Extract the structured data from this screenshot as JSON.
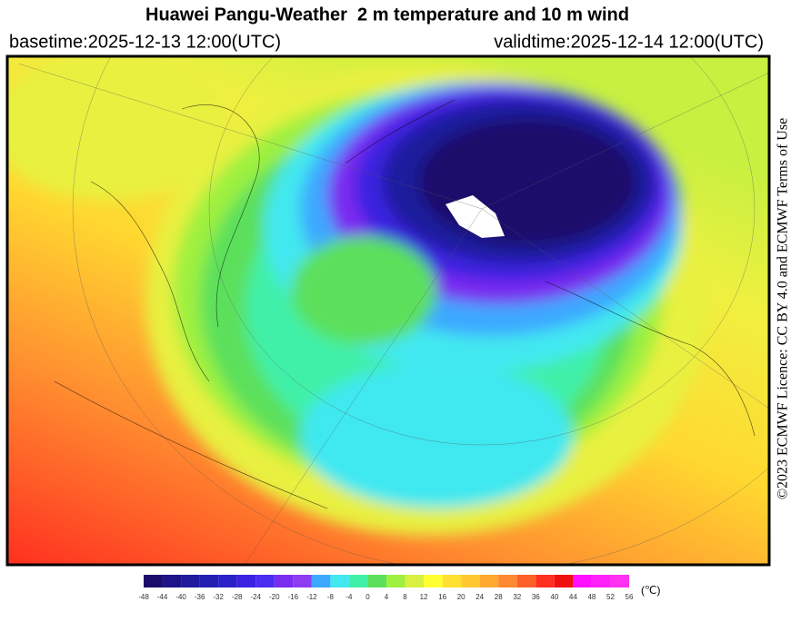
{
  "header": {
    "title": "Huawei Pangu-Weather  2 m temperature and 10 m wind",
    "basetime": "basetime:2025-12-13 12:00(UTC)",
    "validtime": "validtime:2025-12-14 12:00(UTC)"
  },
  "license": "©2023 ECMWF Licence: CC BY 4.0 and ECMWF Terms of Use",
  "colorbar": {
    "ticks": [
      -48,
      -44,
      -40,
      -36,
      -32,
      -28,
      -24,
      -20,
      -16,
      -12,
      -8,
      -4,
      0,
      4,
      8,
      12,
      16,
      20,
      24,
      28,
      32,
      36,
      40,
      44,
      48,
      52,
      56
    ],
    "colors": [
      "#1b0c6b",
      "#1e1488",
      "#1f1a9e",
      "#231fb2",
      "#2a22c8",
      "#3a22e0",
      "#4a2cf2",
      "#7a2cf0",
      "#8d3cf2",
      "#3ca8ff",
      "#42e8f0",
      "#40f0a8",
      "#5ce05c",
      "#9ef040",
      "#d8f040",
      "#ffff30",
      "#ffe030",
      "#ffc830",
      "#ffa830",
      "#ff8830",
      "#ff6028",
      "#ff3020",
      "#f01010",
      "#ff10ff",
      "#ff20f8",
      "#ff30f0"
    ],
    "unit": "(℃)"
  }
}
